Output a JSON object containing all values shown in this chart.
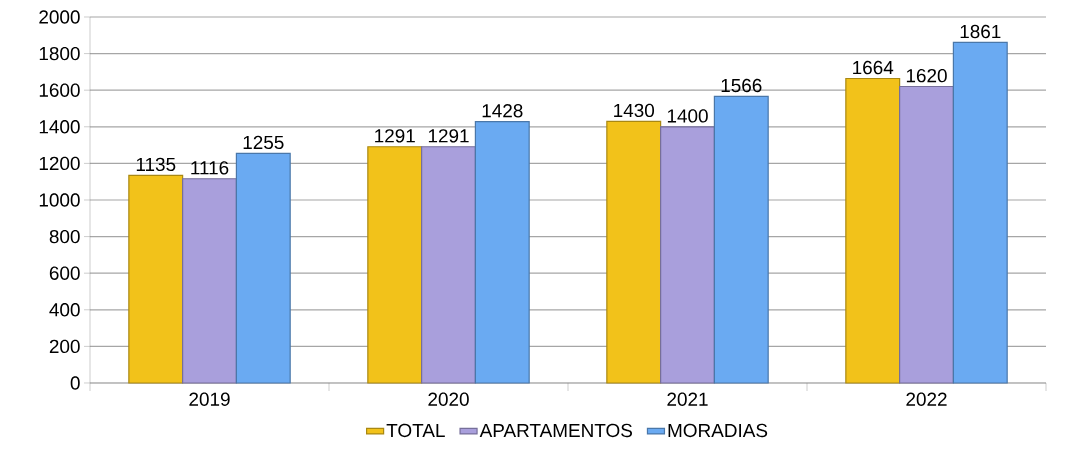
{
  "chart_data": {
    "type": "bar",
    "categories": [
      "2019",
      "2020",
      "2021",
      "2022"
    ],
    "series": [
      {
        "name": "TOTAL",
        "color": "#f2c21a",
        "values": [
          1135,
          1291,
          1430,
          1664
        ]
      },
      {
        "name": "APARTAMENTOS",
        "color": "#a99fdc",
        "values": [
          1116,
          1291,
          1400,
          1620
        ]
      },
      {
        "name": "MORADIAS",
        "color": "#6aaaf2",
        "values": [
          1255,
          1428,
          1566,
          1861
        ]
      }
    ],
    "ylim": [
      0,
      2000
    ],
    "yticks": [
      0,
      200,
      400,
      600,
      800,
      1000,
      1200,
      1400,
      1600,
      1800,
      2000
    ],
    "grid": "y",
    "legend": "bottom",
    "data_labels": true
  }
}
